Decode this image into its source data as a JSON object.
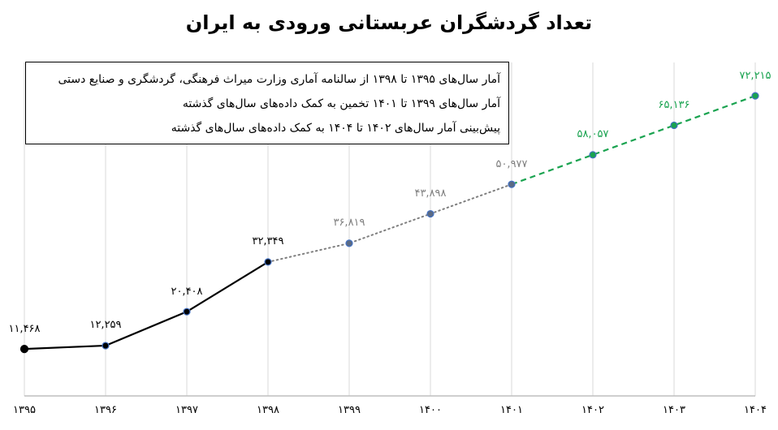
{
  "title": "تعداد گردشگران عربستانی ورودی به ایران",
  "legend": {
    "lines": [
      "آمار سال‌های ۱۳۹۵ تا ۱۳۹۸ از سالنامه آماری وزارت میراث فرهنگی، گردشگری و صنایع دستی",
      "آمار سال‌های ۱۳۹۹ تا ۱۴۰۱ تخمین به کمک داده‌های سال‌های گذشته",
      "پیش‌بینی آمار سال‌های ۱۴۰۲ تا ۱۴۰۴ به کمک داده‌های سال‌های گذشته"
    ]
  },
  "x_labels": [
    "۱۳۹۵",
    "۱۳۹۶",
    "۱۳۹۷",
    "۱۳۹۸",
    "۱۳۹۹",
    "۱۴۰۰",
    "۱۴۰۱",
    "۱۴۰۲",
    "۱۴۰۳",
    "۱۴۰۴"
  ],
  "point_labels": [
    "۱۱,۴۶۸",
    "۱۲,۲۵۹",
    "۲۰,۴۰۸",
    "۳۲,۳۴۹",
    "۳۶,۸۱۹",
    "۴۳,۸۹۸",
    "۵۰,۹۷۷",
    "۵۸,۰۵۷",
    "۶۵,۱۳۶",
    "۷۲,۲۱۵"
  ],
  "colors": {
    "actual": "#000000",
    "estimate": "#7f7f7f",
    "forecast": "#1aa350",
    "marker_outline": "#4472c4",
    "estimate_marker": "#5a6a84",
    "grid": "#d9d9d9",
    "axis": "#bfbfbf"
  },
  "chart_data": {
    "type": "line",
    "title": "تعداد گردشگران عربستانی ورودی به ایران",
    "xlabel": "",
    "ylabel": "",
    "categories": [
      "1395",
      "1396",
      "1397",
      "1398",
      "1399",
      "1400",
      "1401",
      "1402",
      "1403",
      "1404"
    ],
    "series": [
      {
        "name": "آمار سال‌های ۱۳۹۵ تا ۱۳۹۸ از سالنامه آماری وزارت میراث فرهنگی، گردشگری و صنایع دستی",
        "style": "solid",
        "color": "#000000",
        "x": [
          "1395",
          "1396",
          "1397",
          "1398"
        ],
        "values": [
          11468,
          12259,
          20408,
          32349
        ]
      },
      {
        "name": "آمار سال‌های ۱۳۹۹ تا ۱۴۰۱ تخمین به کمک داده‌های سال‌های گذشته",
        "style": "dotted",
        "color": "#7f7f7f",
        "x": [
          "1398",
          "1399",
          "1400",
          "1401"
        ],
        "values": [
          32349,
          36819,
          43898,
          50977
        ]
      },
      {
        "name": "پیش‌بینی آمار سال‌های ۱۴۰۲ تا ۱۴۰۴ به کمک داده‌های سال‌های گذشته",
        "style": "dashed",
        "color": "#1aa350",
        "x": [
          "1401",
          "1402",
          "1403",
          "1404"
        ],
        "values": [
          50977,
          58057,
          65136,
          72215
        ]
      }
    ],
    "ylim": [
      0,
      80000
    ],
    "grid": "vertical",
    "legend_position": "top-left box",
    "y_axis_visible": false
  }
}
